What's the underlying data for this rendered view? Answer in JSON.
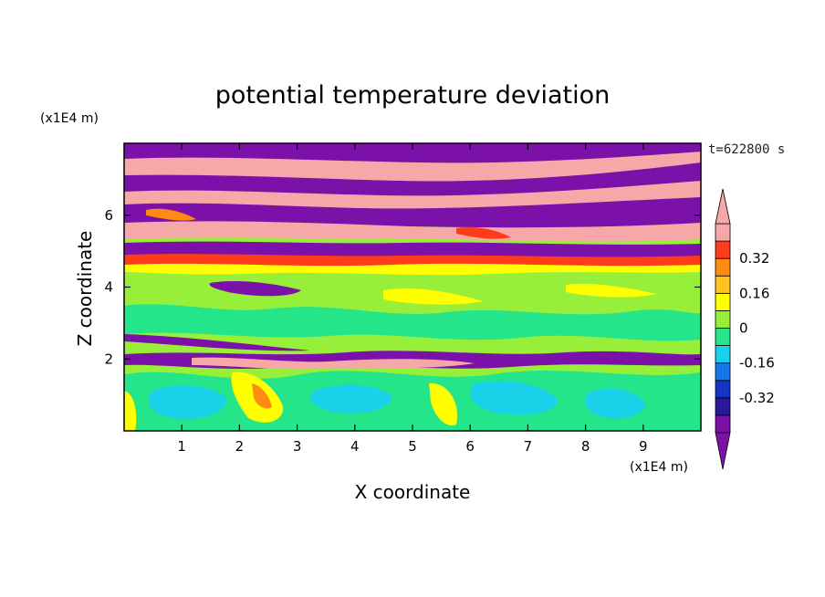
{
  "chart_data": {
    "type": "heatmap",
    "title": "potential temperature deviation",
    "xlabel": "X coordinate",
    "ylabel": "Z coordinate",
    "x_unit": "(x1E4 m)",
    "y_unit": "(x1E4 m)",
    "time_label": "t=622800 s",
    "xlim": [
      0,
      10
    ],
    "ylim": [
      0,
      8
    ],
    "x_ticks": [
      1,
      2,
      3,
      4,
      5,
      6,
      7,
      8,
      9
    ],
    "y_ticks": [
      2,
      4,
      6
    ],
    "colorbar": {
      "levels": [
        -0.48,
        -0.4,
        -0.32,
        -0.24,
        -0.16,
        -0.08,
        0,
        0.08,
        0.16,
        0.24,
        0.32,
        0.4,
        0.48
      ],
      "colors": [
        "#7b11a8",
        "#28189c",
        "#1535c7",
        "#1478ea",
        "#1ad1ea",
        "#25e58b",
        "#97ef39",
        "#ffff00",
        "#ffc21e",
        "#ff8c10",
        "#ff3c1a",
        "#f6a7a7"
      ],
      "extend_low_color": "#7b11a8",
      "extend_high_color": "#f6a7a7",
      "tick_labels": [
        "-0.32",
        "-0.16",
        "0",
        "0.16",
        "0.32"
      ],
      "tick_values": [
        -0.32,
        -0.16,
        0,
        0.16,
        0.32
      ]
    }
  }
}
